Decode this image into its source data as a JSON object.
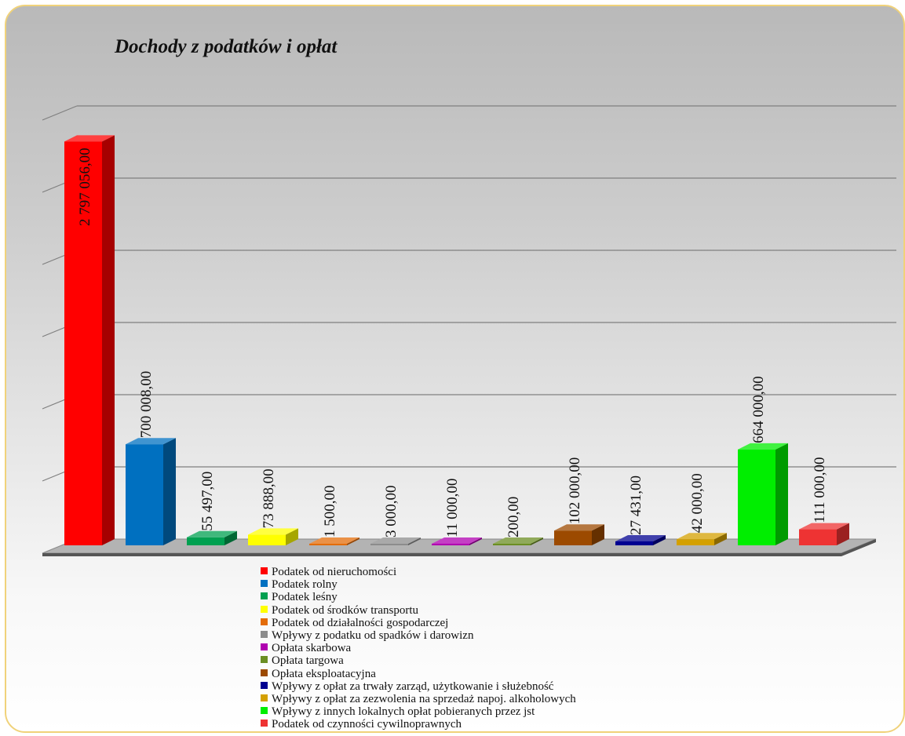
{
  "chart_data": {
    "type": "bar",
    "title": "Dochody z podatków i opłat",
    "xlabel": "",
    "ylabel": "",
    "ylim": [
      0,
      3000000
    ],
    "grid": true,
    "legend_position": "bottom",
    "series": [
      {
        "name": "Podatek od nieruchomości",
        "value": 2797056.0,
        "label": "2 797 056,00",
        "color": "#ff0000",
        "label_inside": true
      },
      {
        "name": "Podatek rolny",
        "value": 700008.0,
        "label": "700 008,00",
        "color": "#0070c0"
      },
      {
        "name": "Podatek leśny",
        "value": 55497.0,
        "label": "55 497,00",
        "color": "#00a050"
      },
      {
        "name": "Podatek od środków transportu",
        "value": 73888.0,
        "label": "73 888,00",
        "color": "#ffff00"
      },
      {
        "name": "Podatek od działalności gospodarczej",
        "value": 1500.0,
        "label": "1 500,00",
        "color": "#e36c09"
      },
      {
        "name": "Wpływy z podatku od spadków i darowizn",
        "value": 3000.0,
        "label": "3 000,00",
        "color": "#8c8c8c"
      },
      {
        "name": "Opłata skarbowa",
        "value": 11000.0,
        "label": "11 000,00",
        "color": "#b000b0"
      },
      {
        "name": "Opłata targowa",
        "value": 200.0,
        "label": "200,00",
        "color": "#6b8e23"
      },
      {
        "name": "Opłata eksploatacyjna",
        "value": 102000.0,
        "label": "102 000,00",
        "color": "#9c4a00"
      },
      {
        "name": "Wpływy z opłat za trwały zarząd, użytkowanie i służebność",
        "value": 27431.0,
        "label": "27 431,00",
        "color": "#000090"
      },
      {
        "name": "Wpływy z opłat za zezwolenia na sprzedaż napoj. alkoholowych",
        "value": 42000.0,
        "label": "42 000,00",
        "color": "#d4a000"
      },
      {
        "name": "Wpływy z innych lokalnych opłat pobieranych przez jst",
        "value": 664000.0,
        "label": "664 000,00",
        "color": "#00ee00"
      },
      {
        "name": "Podatek od czynności cywilnoprawnych",
        "value": 111000.0,
        "label": "111 000,00",
        "color": "#ee3333"
      }
    ]
  }
}
